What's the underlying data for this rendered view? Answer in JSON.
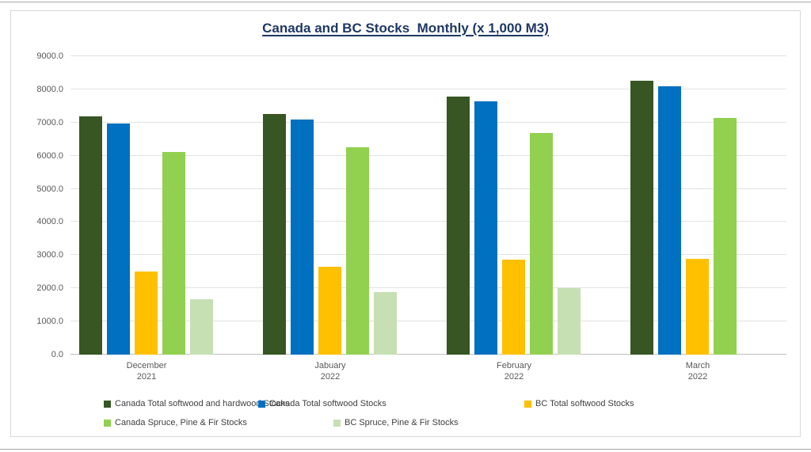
{
  "chart_data": {
    "type": "bar",
    "title": "Canada and BC Stocks  Monthly (x 1,000 M3)",
    "title_color": "#1f3864",
    "categories": [
      {
        "month": "December",
        "year": "2021"
      },
      {
        "month": "Jabuary",
        "year": "2022"
      },
      {
        "month": "February",
        "year": "2022"
      },
      {
        "month": "March",
        "year": "2022"
      }
    ],
    "series": [
      {
        "name": "Canada Total softwood and hardwood Stocks",
        "color": "#375623",
        "values": [
          7180,
          7250,
          7775,
          8260
        ]
      },
      {
        "name": "Canada Total softwood Stocks",
        "color": "#0070c0",
        "values": [
          6980,
          7100,
          7640,
          8090
        ]
      },
      {
        "name": "BC Total softwood Stocks",
        "color": "#ffc000",
        "values": [
          2510,
          2650,
          2875,
          2900
        ]
      },
      {
        "name": "Canada Spruce, Pine & Fir Stocks",
        "color": "#92d050",
        "values": [
          6110,
          6250,
          6690,
          7150
        ]
      },
      {
        "name": "BC Spruce, Pine & Fir Stocks",
        "color": "#c6e0b4",
        "values": [
          1680,
          1880,
          2010,
          null
        ]
      }
    ],
    "ylim": [
      0,
      9000
    ],
    "ytick_step": 1000,
    "yticks": [
      "0.0",
      "1000.0",
      "2000.0",
      "3000.0",
      "4000.0",
      "5000.0",
      "6000.0",
      "7000.0",
      "8000.0",
      "9000.0"
    ],
    "grid": true,
    "gridline_color": "#e2e2e2",
    "axis_label_color": "#595959",
    "legend_text_color": "#404040",
    "legend_position": "bottom"
  }
}
